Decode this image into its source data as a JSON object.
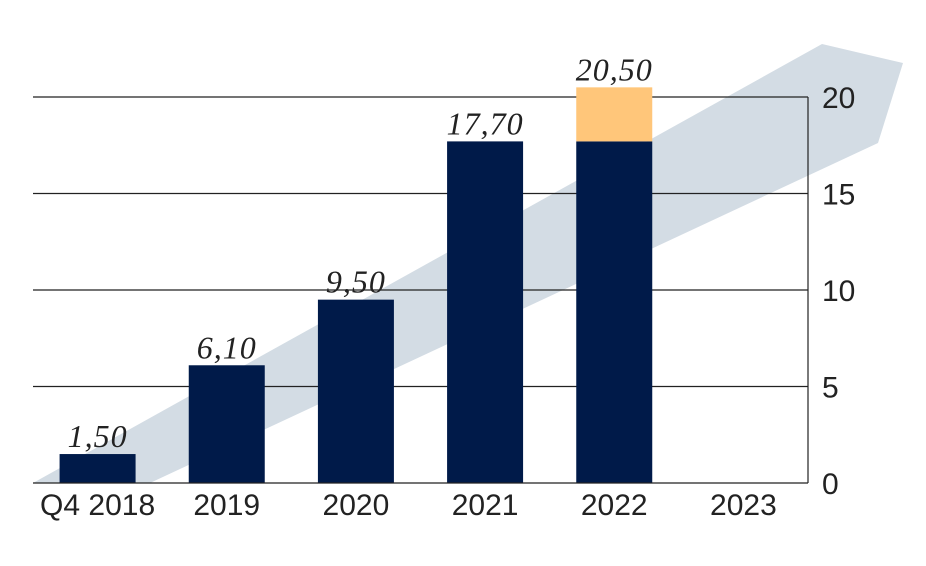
{
  "colors": {
    "bar": "#001A49",
    "bar_highlight": "#FFC67A",
    "arrow": "#D3DCE4",
    "grid": "#222222",
    "background": "#FFFFFF"
  },
  "chart_data": {
    "type": "bar",
    "categories": [
      "Q4 2018",
      "2019",
      "2020",
      "2021",
      "2022",
      "2023"
    ],
    "series": [
      {
        "values": [
          1.5,
          6.1,
          9.5,
          17.7,
          17.7,
          null
        ]
      },
      {
        "values": [
          null,
          null,
          null,
          null,
          2.8,
          null
        ]
      }
    ],
    "totals": [
      1.5,
      6.1,
      9.5,
      17.7,
      20.5,
      null
    ],
    "data_labels": [
      "1,50",
      "6,10",
      "9,50",
      "17,70",
      "20,50",
      ""
    ],
    "y_ticks": [
      "0",
      "5",
      "10",
      "15",
      "20"
    ],
    "ylim": [
      0,
      20
    ],
    "y_axis_side": "right",
    "grid": true,
    "legend": "none",
    "title": "",
    "xlabel": "",
    "ylabel": "",
    "background_arrow": true
  }
}
